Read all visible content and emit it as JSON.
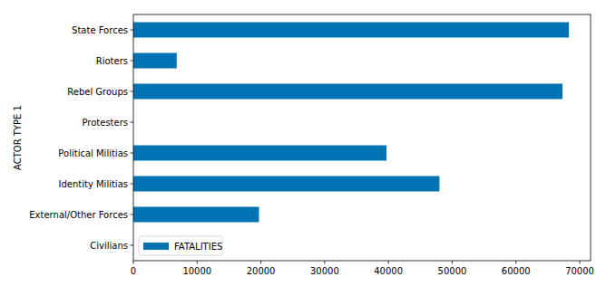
{
  "chart_data": {
    "type": "bar",
    "orientation": "horizontal",
    "ylabel": "ACTOR TYPE 1",
    "categories": [
      "Civilians",
      "External/Other Forces",
      "Identity Militias",
      "Political Militias",
      "Protesters",
      "Rebel Groups",
      "Rioters",
      "State Forces"
    ],
    "series": [
      {
        "name": "FATALITIES",
        "color": "#0173b2",
        "values": [
          0,
          19700,
          48000,
          39700,
          0,
          67300,
          6800,
          68300
        ]
      }
    ],
    "xlim": [
      0,
      71700
    ],
    "xticks": [
      0,
      10000,
      20000,
      30000,
      40000,
      50000,
      60000,
      70000
    ],
    "grid": false,
    "legend": "lower left"
  }
}
